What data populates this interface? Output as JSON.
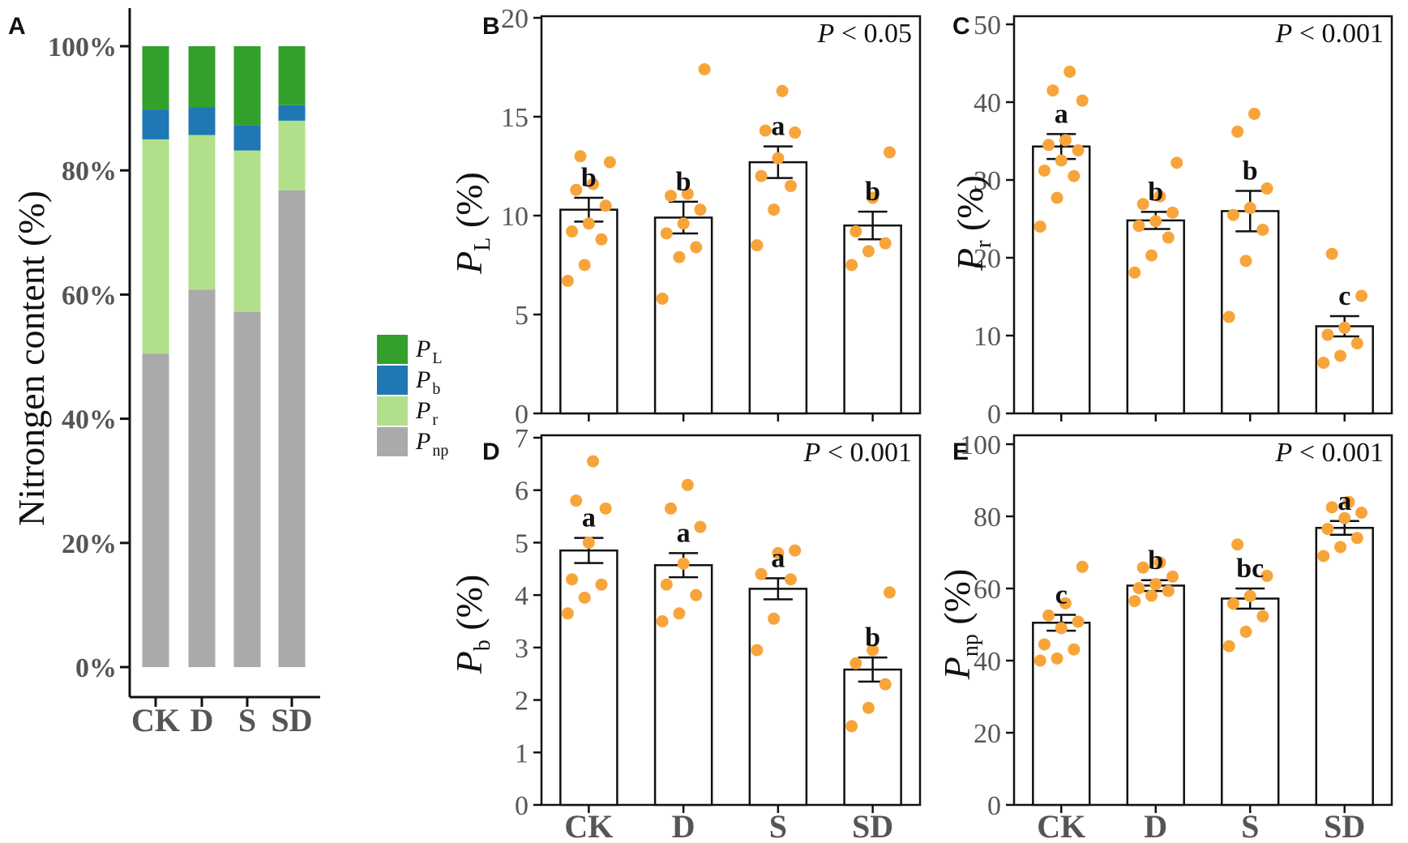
{
  "colors": {
    "dot": "#F7A53A",
    "PL": "#33A02C",
    "Pb": "#1F78B4",
    "Pr": "#B2DF8A",
    "Pnp": "#AAAAAA"
  },
  "chart_data": [
    {
      "panel": "A",
      "type": "bar",
      "stacked": true,
      "categories": [
        "CK",
        "D",
        "S",
        "SD"
      ],
      "ylabel": "Nitrongen content (%)",
      "ylim": [
        0,
        100
      ],
      "yticks": [
        "0%",
        "20%",
        "40%",
        "60%",
        "80%",
        "100%"
      ],
      "legend": [
        {
          "key": "PL",
          "label": "P",
          "sub": "L"
        },
        {
          "key": "Pb",
          "label": "P",
          "sub": "b"
        },
        {
          "key": "Pr",
          "label": "P",
          "sub": "r"
        },
        {
          "key": "Pnp",
          "label": "P",
          "sub": "np"
        }
      ],
      "series": [
        {
          "name": "Pnp",
          "values": [
            50.5,
            60.8,
            57.2,
            76.8
          ]
        },
        {
          "name": "Pr",
          "values": [
            34.5,
            24.9,
            26.0,
            11.2
          ]
        },
        {
          "name": "Pb",
          "values": [
            4.8,
            4.5,
            4.1,
            2.5
          ]
        },
        {
          "name": "PL",
          "values": [
            10.2,
            9.8,
            12.7,
            9.5
          ]
        }
      ]
    },
    {
      "panel": "B",
      "type": "bar",
      "categories": [
        "CK",
        "D",
        "S",
        "SD"
      ],
      "ylabel": "P",
      "ylabel_sub": "L",
      "ylabel_unit": " (%)",
      "ylim": [
        0,
        20
      ],
      "yticks": [
        0,
        5,
        10,
        15,
        20
      ],
      "ptext": "P < 0.05",
      "values": [
        10.3,
        9.9,
        12.7,
        9.5
      ],
      "errors": [
        0.6,
        0.8,
        0.8,
        0.7
      ],
      "letters": [
        "b",
        "b",
        "a",
        "b"
      ],
      "points": [
        [
          6.7,
          7.5,
          8.8,
          9.2,
          9.6,
          10.5,
          11.3,
          11.6,
          12.7,
          13.0
        ],
        [
          5.8,
          7.9,
          8.4,
          9.1,
          9.6,
          10.3,
          11.0,
          11.1,
          17.4
        ],
        [
          8.5,
          10.3,
          11.5,
          12.0,
          12.9,
          14.2,
          14.3,
          16.3
        ],
        [
          7.5,
          8.2,
          8.6,
          9.2,
          10.9,
          13.2
        ]
      ]
    },
    {
      "panel": "C",
      "type": "bar",
      "categories": [
        "CK",
        "D",
        "S",
        "SD"
      ],
      "ylabel": "P",
      "ylabel_sub": "r",
      "ylabel_unit": " (%)",
      "ylim": [
        0,
        50
      ],
      "yticks": [
        0,
        10,
        20,
        30,
        40,
        50
      ],
      "ptext": "P < 0.001",
      "values": [
        34.3,
        24.8,
        26.0,
        11.2
      ],
      "errors": [
        1.6,
        1.1,
        2.6,
        1.3
      ],
      "letters": [
        "a",
        "b",
        "b",
        "c"
      ],
      "points": [
        [
          24.0,
          27.7,
          30.5,
          31.2,
          32.5,
          33.8,
          34.5,
          35.1,
          40.2,
          41.5,
          43.9
        ],
        [
          18.1,
          20.3,
          22.6,
          24.1,
          24.7,
          25.8,
          26.9,
          27.9,
          32.2
        ],
        [
          12.4,
          19.6,
          23.6,
          25.5,
          26.4,
          28.9,
          36.2,
          38.5
        ],
        [
          6.5,
          7.4,
          9.0,
          10.1,
          11.0,
          15.1,
          20.5
        ]
      ]
    },
    {
      "panel": "D",
      "type": "bar",
      "categories": [
        "CK",
        "D",
        "S",
        "SD"
      ],
      "ylabel": "P",
      "ylabel_sub": "b",
      "ylabel_unit": " (%)",
      "ylim": [
        0,
        7
      ],
      "yticks": [
        0,
        1,
        2,
        3,
        4,
        5,
        6,
        7
      ],
      "ptext": "P < 0.001",
      "values": [
        4.85,
        4.57,
        4.12,
        2.58
      ],
      "errors": [
        0.24,
        0.23,
        0.2,
        0.23
      ],
      "letters": [
        "a",
        "a",
        "a",
        "b"
      ],
      "points": [
        [
          3.65,
          3.95,
          4.2,
          4.3,
          5.0,
          5.65,
          5.8,
          6.55
        ],
        [
          3.5,
          3.65,
          4.0,
          4.2,
          4.6,
          5.3,
          5.65,
          6.1
        ],
        [
          2.95,
          3.55,
          4.3,
          4.4,
          4.8,
          4.85
        ],
        [
          1.5,
          1.85,
          2.3,
          2.7,
          2.95,
          4.05
        ]
      ]
    },
    {
      "panel": "E",
      "type": "bar",
      "categories": [
        "CK",
        "D",
        "S",
        "SD"
      ],
      "ylabel": "P",
      "ylabel_sub": "np",
      "ylabel_unit": " (%)",
      "ylim": [
        0,
        100
      ],
      "yticks": [
        0,
        20,
        40,
        60,
        80,
        100
      ],
      "ptext": "P < 0.001",
      "values": [
        50.5,
        60.8,
        57.2,
        76.8
      ],
      "errors": [
        2.2,
        1.5,
        2.8,
        1.9
      ],
      "letters": [
        "c",
        "b",
        "bc",
        "a"
      ],
      "points": [
        [
          40.0,
          40.6,
          43.1,
          44.5,
          49.0,
          50.8,
          52.5,
          55.9,
          66.0
        ],
        [
          56.5,
          58.0,
          59.3,
          60.1,
          61.2,
          63.3,
          65.8,
          67.2
        ],
        [
          44.0,
          48.0,
          52.3,
          55.8,
          57.9,
          63.5,
          72.2
        ],
        [
          69.0,
          71.5,
          74.0,
          76.5,
          79.5,
          81.0,
          82.5,
          84.0
        ]
      ]
    }
  ]
}
